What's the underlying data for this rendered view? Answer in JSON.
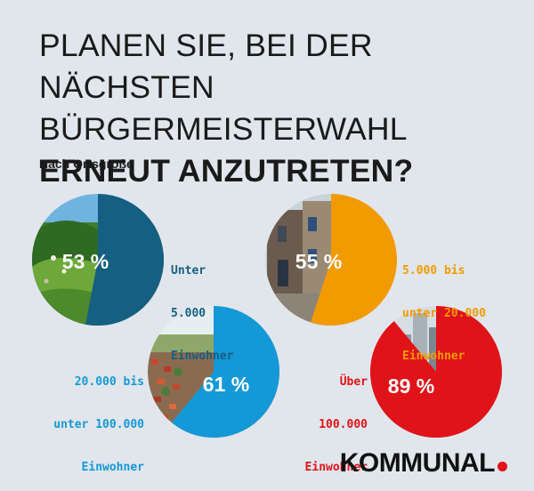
{
  "title": {
    "light": "PLANEN SIE, BEI DER NÄCHSTEN BÜRGERMEISTERWAHL",
    "bold": "ERNEUT ANZUTRETEN?"
  },
  "subtitle": "Nach Ortsgröße",
  "brand": {
    "name": "KOMMUNAL",
    "dot_color": "#e01318"
  },
  "chart_data": {
    "type": "pie",
    "title": "PLANEN SIE, BEI DER NÄCHSTEN BÜRGERMEISTERWAHL ERNEUT ANZUTRETEN?",
    "subtitle": "Nach Ortsgröße",
    "unit": "%",
    "categories": [
      "Unter 5.000 Einwohner",
      "5.000 bis unter 20.000 Einwohner",
      "20.000 bis unter 100.000 Einwohner",
      "Über 100.000 Einwohner"
    ],
    "values": [
      53,
      55,
      61,
      89
    ],
    "value_labels": [
      "53 %",
      "55 %",
      "61 %",
      "89 %"
    ],
    "label_lines": [
      [
        "Unter",
        "5.000",
        "Einwohner"
      ],
      [
        "5.000 bis",
        "unter 20.000",
        "Einwohner"
      ],
      [
        "20.000 bis",
        "unter 100.000",
        "Einwohner"
      ],
      [
        "Über",
        "100.000",
        "Einwohner"
      ]
    ],
    "colors": [
      "#155f82",
      "#f29b00",
      "#1598d7",
      "#e01318"
    ],
    "background_images": [
      "green hills",
      "old town street",
      "suburban aerial",
      "city skyline"
    ]
  }
}
